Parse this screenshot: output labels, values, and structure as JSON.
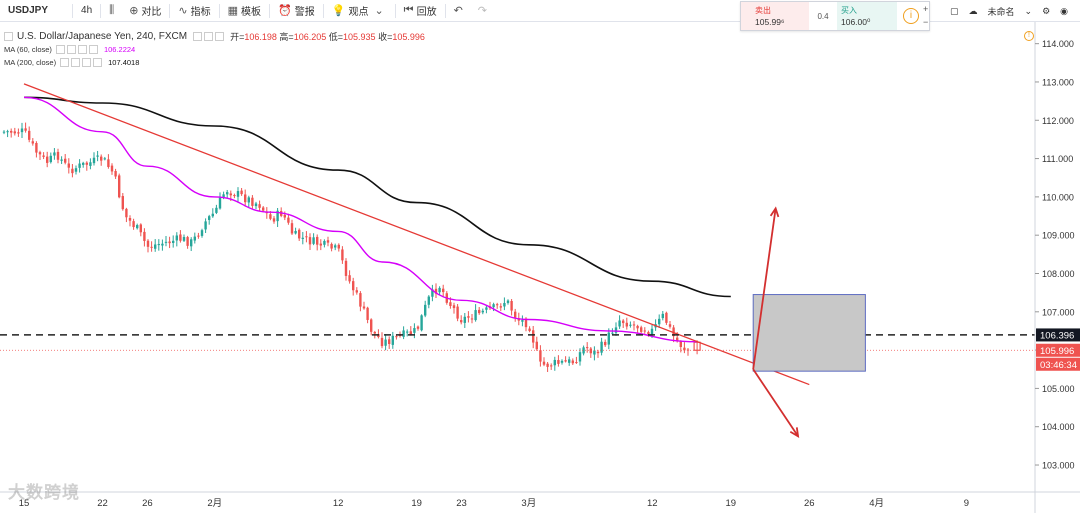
{
  "toolbar": {
    "symbol": "USDJPY",
    "interval": "4h",
    "compare": "对比",
    "indicators": "指标",
    "templates": "模板",
    "alert": "警报",
    "ideas": "观点",
    "replay": "回放"
  },
  "quote": {
    "sell_label": "卖出",
    "sell_value": "105.99⁶",
    "spread": "0.4",
    "buy_label": "买入",
    "buy_value": "106.00⁰",
    "info_icon": "info-icon",
    "plus": "+",
    "minus": "−"
  },
  "right_tools": {
    "layout_name": "未命名"
  },
  "legend": {
    "title": "U.S. Dollar/Japanese Yen, 240, FXCM",
    "open_label": "开=",
    "open": "106.198",
    "high_label": "高=",
    "high": "106.205",
    "low_label": "低=",
    "low": "105.935",
    "close_label": "收=",
    "close": "105.996",
    "ma60_label": "MA (60, close)",
    "ma60_value": "106.2224",
    "ma200_label": "MA (200, close)",
    "ma200_value": "107.4018"
  },
  "watermark": "大数跨境",
  "colors": {
    "up": "#26a69a",
    "down": "#ef5350",
    "ma60": "#d500f9",
    "ma200": "#111111",
    "trendline": "#e53935",
    "arrow": "#d32f2f",
    "box_fill": "#c8c8c8",
    "box_stroke": "#5c6bc0",
    "hline": "#222222",
    "price_line": "#ef5350"
  },
  "chart_data": {
    "type": "candlestick",
    "symbol": "USDJPY",
    "timeframe": "240",
    "ylim": [
      102.4,
      114.2
    ],
    "y_ticks": [
      103.0,
      104.0,
      105.0,
      106.0,
      107.0,
      108.0,
      109.0,
      110.0,
      111.0,
      112.0,
      113.0,
      114.0
    ],
    "x_ticks": [
      "15",
      "22",
      "26",
      "2月",
      "12",
      "19",
      "23",
      "3月",
      "12",
      "19",
      "26",
      "4月",
      "9"
    ],
    "x_tick_dates": [
      "2018-01-15",
      "2018-01-22",
      "2018-01-26",
      "2018-02-01",
      "2018-02-12",
      "2018-02-19",
      "2018-02-23",
      "2018-03-01",
      "2018-03-12",
      "2018-03-19",
      "2018-03-26",
      "2018-04-01",
      "2018-04-09"
    ],
    "price_path": [
      [
        "2018-01-15",
        111.7
      ],
      [
        "2018-01-16",
        111.2
      ],
      [
        "2018-01-17",
        110.9
      ],
      [
        "2018-01-18",
        111.1
      ],
      [
        "2018-01-19",
        110.7
      ],
      [
        "2018-01-22",
        111.0
      ],
      [
        "2018-01-23",
        110.6
      ],
      [
        "2018-01-24",
        109.5
      ],
      [
        "2018-01-25",
        109.2
      ],
      [
        "2018-01-26",
        108.7
      ],
      [
        "2018-01-29",
        108.9
      ],
      [
        "2018-01-30",
        108.8
      ],
      [
        "2018-01-31",
        109.3
      ],
      [
        "2018-02-01",
        109.6
      ],
      [
        "2018-02-02",
        110.2
      ],
      [
        "2018-02-05",
        109.8
      ],
      [
        "2018-02-06",
        109.4
      ],
      [
        "2018-02-07",
        109.6
      ],
      [
        "2018-02-08",
        109.0
      ],
      [
        "2018-02-09",
        108.9
      ],
      [
        "2018-02-12",
        108.6
      ],
      [
        "2018-02-13",
        107.8
      ],
      [
        "2018-02-14",
        107.2
      ],
      [
        "2018-02-15",
        106.5
      ],
      [
        "2018-02-16",
        106.2
      ],
      [
        "2018-02-19",
        106.5
      ],
      [
        "2018-02-20",
        107.3
      ],
      [
        "2018-02-21",
        107.7
      ],
      [
        "2018-02-22",
        107.2
      ],
      [
        "2018-02-23",
        106.8
      ],
      [
        "2018-02-26",
        107.1
      ],
      [
        "2018-02-27",
        107.3
      ],
      [
        "2018-02-28",
        106.8
      ],
      [
        "2018-03-01",
        106.7
      ],
      [
        "2018-03-02",
        105.6
      ],
      [
        "2018-03-05",
        105.7
      ],
      [
        "2018-03-06",
        106.1
      ],
      [
        "2018-03-07",
        105.9
      ],
      [
        "2018-03-08",
        106.3
      ],
      [
        "2018-03-09",
        106.8
      ],
      [
        "2018-03-12",
        106.5
      ],
      [
        "2018-03-13",
        106.9
      ],
      [
        "2018-03-14",
        106.3
      ],
      [
        "2018-03-15",
        106.0
      ],
      [
        "2018-03-16",
        105.996
      ]
    ],
    "ma200_path": [
      [
        "2018-01-15",
        112.6
      ],
      [
        "2018-01-22",
        112.45
      ],
      [
        "2018-02-01",
        111.85
      ],
      [
        "2018-02-12",
        110.7
      ],
      [
        "2018-02-19",
        109.85
      ],
      [
        "2018-03-01",
        108.75
      ],
      [
        "2018-03-12",
        107.8
      ],
      [
        "2018-03-19",
        107.4
      ]
    ],
    "ma60_path": [
      [
        "2018-01-15",
        112.6
      ],
      [
        "2018-01-22",
        111.7
      ],
      [
        "2018-01-26",
        110.8
      ],
      [
        "2018-02-01",
        110.0
      ],
      [
        "2018-02-06",
        109.6
      ],
      [
        "2018-02-12",
        109.1
      ],
      [
        "2018-02-16",
        108.3
      ],
      [
        "2018-02-23",
        107.3
      ],
      [
        "2018-03-01",
        106.8
      ],
      [
        "2018-03-08",
        106.5
      ],
      [
        "2018-03-16",
        106.22
      ]
    ],
    "trendline": {
      "start": [
        "2018-01-15",
        112.95
      ],
      "end": [
        "2018-03-26",
        105.1
      ]
    },
    "horizontal_level": 106.396,
    "last_price": 105.996,
    "countdown": "03:46:34",
    "projection_box": {
      "date_start": "2018-03-21",
      "date_end": "2018-03-31",
      "price_low": 105.45,
      "price_high": 107.45
    },
    "arrows": [
      {
        "from": [
          "2018-03-21",
          105.5
        ],
        "to": [
          "2018-03-23",
          109.7
        ]
      },
      {
        "from": [
          "2018-03-21",
          105.5
        ],
        "to": [
          "2018-03-25",
          103.75
        ]
      }
    ]
  }
}
